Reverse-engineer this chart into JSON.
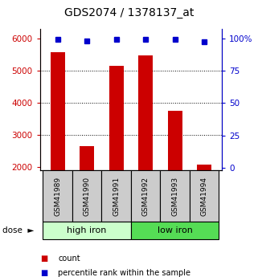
{
  "title": "GDS2074 / 1378137_at",
  "samples": [
    "GSM41989",
    "GSM41990",
    "GSM41991",
    "GSM41992",
    "GSM41993",
    "GSM41994"
  ],
  "counts": [
    5580,
    2650,
    5150,
    5470,
    3750,
    2080
  ],
  "percentiles": [
    99,
    98,
    99,
    99,
    99,
    97
  ],
  "group_colors": [
    "#ccffcc",
    "#55dd55"
  ],
  "bar_color": "#cc0000",
  "dot_color": "#0000cc",
  "left_yticks": [
    2000,
    3000,
    4000,
    5000,
    6000
  ],
  "right_yticks": [
    0,
    25,
    50,
    75,
    100
  ],
  "ylim_left": [
    1900,
    6300
  ],
  "ylim_right": [
    -2,
    107
  ],
  "grid_ticks": [
    3000,
    4000,
    5000
  ],
  "legend_count": "count",
  "legend_pct": "percentile rank within the sample",
  "sample_box_color": "#cccccc",
  "title_fontsize": 10,
  "tick_fontsize": 7.5,
  "bar_width": 0.5
}
